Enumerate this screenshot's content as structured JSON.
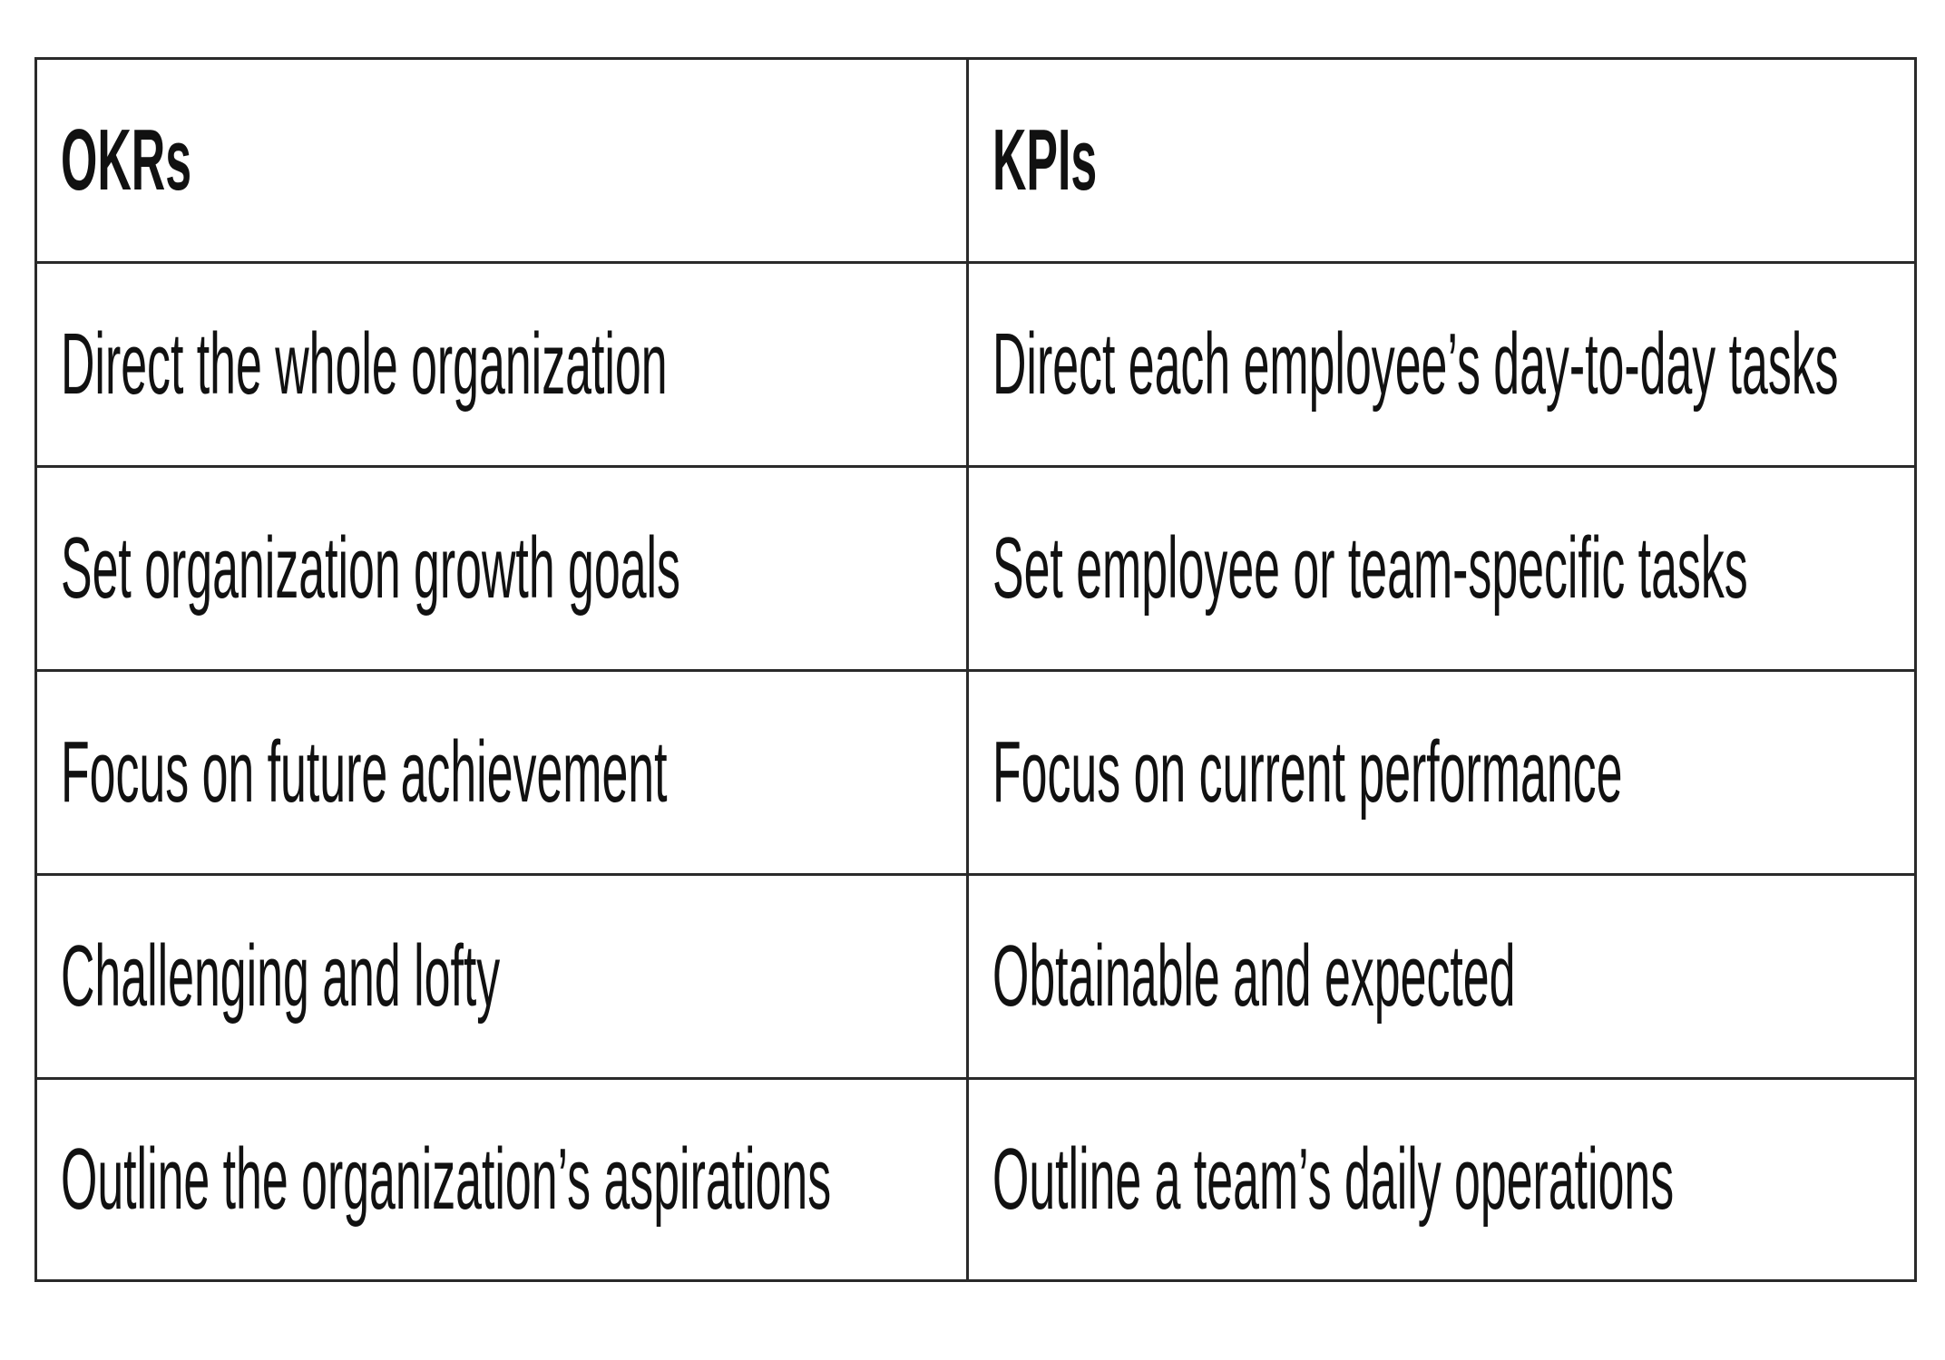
{
  "table": {
    "headers": [
      "OKRs",
      "KPIs"
    ],
    "rows": [
      [
        "Direct the whole organization",
        "Direct each employee’s day-to-day tasks"
      ],
      [
        "Set organization growth goals",
        "Set employee or team-specific tasks"
      ],
      [
        "Focus on future achievement",
        "Focus on current performance"
      ],
      [
        "Challenging and lofty",
        "Obtainable and expected"
      ],
      [
        "Outline the organization’s aspirations",
        "Outline a team’s daily operations"
      ]
    ]
  }
}
